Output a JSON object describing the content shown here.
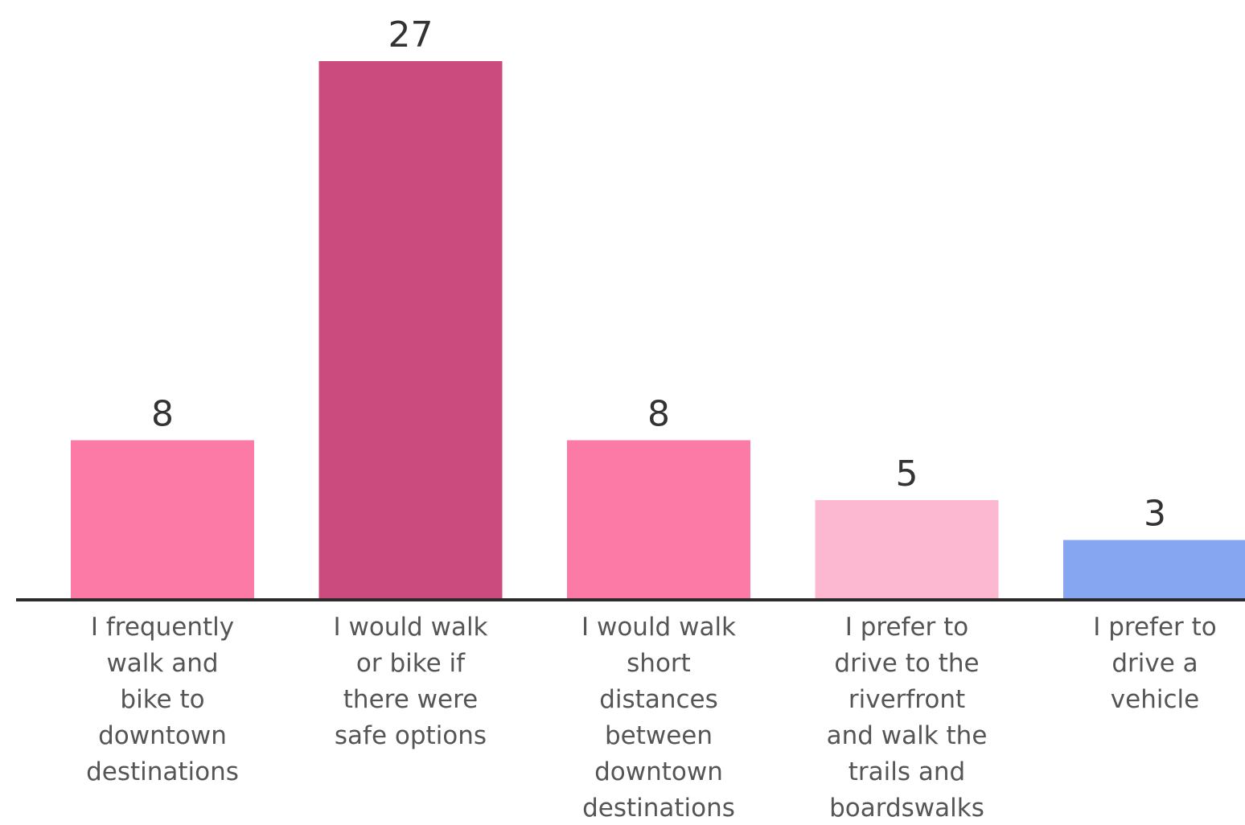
{
  "chart_data": {
    "type": "bar",
    "title": "",
    "xlabel": "",
    "ylabel": "",
    "ylim": [
      0,
      27
    ],
    "grid": false,
    "legend": "none",
    "categories": [
      [
        "I frequently",
        "walk and",
        "bike to",
        "downtown",
        "destinations"
      ],
      [
        "I would walk",
        "or bike if",
        "there were",
        "safe options"
      ],
      [
        "I would walk",
        "short",
        "distances",
        "between",
        "downtown",
        "destinations"
      ],
      [
        "I prefer to",
        "drive to the",
        "riverfront",
        "and walk the",
        "trails and",
        "boardswalks"
      ],
      [
        "I prefer to",
        "drive a",
        "vehicle"
      ]
    ],
    "values": [
      8,
      27,
      8,
      5,
      3
    ],
    "value_labels": [
      "8",
      "27",
      "8",
      "5",
      "3"
    ],
    "colors": [
      "#fb7aa6",
      "#cc4b7e",
      "#fb7aa6",
      "#fcb8d0",
      "#86a6f2"
    ],
    "axis_color": "#2b2b2b"
  }
}
